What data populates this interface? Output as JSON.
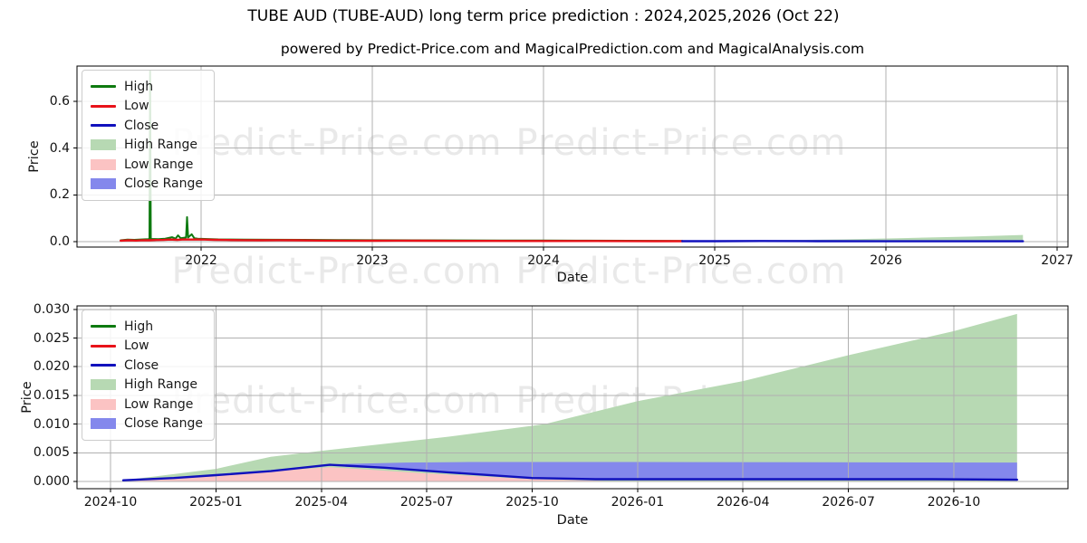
{
  "title": "TUBE AUD (TUBE-AUD) long term price prediction : 2024,2025,2026 (Oct 22)",
  "subtitle": "powered by Predict-Price.com and MagicalPrediction.com and MagicalAnalysis.com",
  "watermark_text": "Predict-Price.com",
  "colors": {
    "high_line": "#0e7a10",
    "low_line": "#e81219",
    "close_line": "#1111bd",
    "high_range_fill": "#b7d9b3",
    "low_range_fill": "#fbc3c3",
    "close_range_fill": "#8488ec",
    "grid": "#b0b0b0",
    "spine": "#000000",
    "watermark": "#e9e9e9"
  },
  "legend": {
    "items": [
      {
        "label": "High",
        "swatch": "line",
        "color": "#0e7a10"
      },
      {
        "label": "Low",
        "swatch": "line",
        "color": "#e81219"
      },
      {
        "label": "Close",
        "swatch": "line",
        "color": "#1111bd"
      },
      {
        "label": "High Range",
        "swatch": "patch",
        "color": "#b7d9b3"
      },
      {
        "label": "Low Range",
        "swatch": "patch",
        "color": "#fbc3c3"
      },
      {
        "label": "Close Range",
        "swatch": "patch",
        "color": "#8488ec"
      }
    ]
  },
  "chart_data": [
    {
      "type": "line",
      "name": "historical-and-forecast-overview",
      "xlabel": "Date",
      "ylabel": "Price",
      "x_unit": "decimal_year",
      "xlim": [
        2021.275,
        2027.063
      ],
      "ylim": [
        -0.023,
        0.751
      ],
      "x_ticks": {
        "values": [
          2022,
          2023,
          2024,
          2025,
          2026,
          2027
        ],
        "labels": [
          "2022",
          "2023",
          "2024",
          "2025",
          "2026",
          "2027"
        ]
      },
      "y_ticks": {
        "values": [
          0.0,
          0.2,
          0.4,
          0.6
        ],
        "labels": [
          "0.0",
          "0.2",
          "0.4",
          "0.6"
        ]
      },
      "grid": true,
      "legend_position": "upper-left",
      "series": [
        {
          "name": "High Range",
          "kind": "area",
          "color": "#b7d9b3",
          "top": [
            [
              2024.81,
              0.002
            ],
            [
              2025.27,
              0.0055
            ],
            [
              2025.75,
              0.01
            ],
            [
              2026.1,
              0.0152
            ],
            [
              2026.5,
              0.022
            ],
            [
              2026.8,
              0.029
            ]
          ],
          "baseline": 0
        },
        {
          "name": "Low Range",
          "kind": "area",
          "color": "#fbc3c3",
          "top": [
            [
              2024.81,
              0.002
            ],
            [
              2025.27,
              0.0025
            ],
            [
              2025.9,
              0.0003
            ],
            [
              2026.8,
              0.0002
            ]
          ],
          "baseline": 0
        },
        {
          "name": "Close Range",
          "kind": "area",
          "color": "#8488ec",
          "top": [
            [
              2025.27,
              0.0035
            ],
            [
              2025.6,
              0.0036
            ],
            [
              2026.8,
              0.0034
            ]
          ],
          "bottom": [
            [
              2026.8,
              0.0003
            ],
            [
              2025.6,
              0.0015
            ],
            [
              2025.27,
              0.0028
            ]
          ]
        },
        {
          "name": "High",
          "kind": "line",
          "color": "#0e7a10",
          "width": 2,
          "points": [
            [
              2021.53,
              0.006
            ],
            [
              2021.57,
              0.009
            ],
            [
              2021.61,
              0.008
            ],
            [
              2021.65,
              0.0095
            ],
            [
              2021.69,
              0.011
            ],
            [
              2021.698,
              0.012
            ],
            [
              2021.702,
              0.73
            ],
            [
              2021.706,
              0.012
            ],
            [
              2021.75,
              0.011
            ],
            [
              2021.79,
              0.013
            ],
            [
              2021.83,
              0.019
            ],
            [
              2021.85,
              0.013
            ],
            [
              2021.865,
              0.027
            ],
            [
              2021.88,
              0.015
            ],
            [
              2021.912,
              0.018
            ],
            [
              2021.918,
              0.105
            ],
            [
              2021.924,
              0.018
            ],
            [
              2021.945,
              0.032
            ],
            [
              2021.96,
              0.015
            ],
            [
              2021.98,
              0.013
            ],
            [
              2022.02,
              0.012
            ],
            [
              2022.1,
              0.01
            ],
            [
              2022.25,
              0.009
            ],
            [
              2022.4,
              0.0085
            ],
            [
              2022.6,
              0.008
            ],
            [
              2022.8,
              0.007
            ],
            [
              2023.0,
              0.0065
            ],
            [
              2023.25,
              0.006
            ],
            [
              2023.5,
              0.0055
            ],
            [
              2023.75,
              0.005
            ],
            [
              2024.0,
              0.005
            ],
            [
              2024.25,
              0.0045
            ],
            [
              2024.5,
              0.004
            ],
            [
              2024.81,
              0.0035
            ]
          ]
        },
        {
          "name": "Low",
          "kind": "line",
          "color": "#e81219",
          "width": 2.4,
          "points": [
            [
              2021.53,
              0.0045
            ],
            [
              2021.58,
              0.006
            ],
            [
              2021.62,
              0.005
            ],
            [
              2021.66,
              0.0065
            ],
            [
              2021.7,
              0.006
            ],
            [
              2021.74,
              0.007
            ],
            [
              2021.78,
              0.0075
            ],
            [
              2021.82,
              0.009
            ],
            [
              2021.86,
              0.008
            ],
            [
              2021.9,
              0.0095
            ],
            [
              2021.94,
              0.009
            ],
            [
              2021.98,
              0.0095
            ],
            [
              2022.02,
              0.009
            ],
            [
              2022.08,
              0.008
            ],
            [
              2022.15,
              0.007
            ],
            [
              2022.25,
              0.0065
            ],
            [
              2022.35,
              0.006
            ],
            [
              2022.45,
              0.0065
            ],
            [
              2022.55,
              0.006
            ],
            [
              2022.7,
              0.005
            ],
            [
              2022.85,
              0.0045
            ],
            [
              2023.0,
              0.004
            ],
            [
              2023.15,
              0.0045
            ],
            [
              2023.3,
              0.004
            ],
            [
              2023.5,
              0.0035
            ],
            [
              2023.7,
              0.0035
            ],
            [
              2023.9,
              0.003
            ],
            [
              2024.1,
              0.003
            ],
            [
              2024.3,
              0.0028
            ],
            [
              2024.5,
              0.0025
            ],
            [
              2024.65,
              0.0022
            ],
            [
              2024.81,
              0.002
            ]
          ]
        },
        {
          "name": "Close",
          "kind": "line",
          "color": "#1111bd",
          "width": 2.4,
          "points": [
            [
              2024.81,
              0.002
            ],
            [
              2025.0,
              0.0022
            ],
            [
              2025.27,
              0.003
            ],
            [
              2025.6,
              0.002
            ],
            [
              2026.0,
              0.0018
            ],
            [
              2026.4,
              0.0018
            ],
            [
              2026.8,
              0.0016
            ]
          ]
        }
      ]
    },
    {
      "type": "line",
      "name": "prediction-detail",
      "xlabel": "Date",
      "ylabel": "Price",
      "x_unit": "decimal_year",
      "xlim": [
        2024.6705,
        2027.0207
      ],
      "ylim": [
        -0.00126,
        0.0306
      ],
      "x_ticks": {
        "values": [
          2024.75,
          2025.0,
          2025.25,
          2025.5,
          2025.75,
          2026.0,
          2026.25,
          2026.5,
          2026.75
        ],
        "labels": [
          "2024-10",
          "2025-01",
          "2025-04",
          "2025-07",
          "2025-10",
          "2026-01",
          "2026-04",
          "2026-07",
          "2026-10"
        ]
      },
      "y_ticks": {
        "values": [
          0.0,
          0.005,
          0.01,
          0.015,
          0.02,
          0.025,
          0.03
        ],
        "labels": [
          "0.000",
          "0.005",
          "0.010",
          "0.015",
          "0.020",
          "0.025",
          "0.030"
        ]
      },
      "grid": true,
      "legend_position": "upper-left",
      "series": [
        {
          "name": "High Range",
          "kind": "area",
          "color": "#b7d9b3",
          "top": [
            [
              2024.78,
              0.0002
            ],
            [
              2025.0,
              0.0022
            ],
            [
              2025.13,
              0.0043
            ],
            [
              2025.27,
              0.0055
            ],
            [
              2025.55,
              0.0078
            ],
            [
              2025.78,
              0.01
            ],
            [
              2026.0,
              0.014
            ],
            [
              2026.25,
              0.0175
            ],
            [
              2026.5,
              0.022
            ],
            [
              2026.75,
              0.0262
            ],
            [
              2026.9,
              0.0292
            ]
          ],
          "baseline": 0
        },
        {
          "name": "Low Range",
          "kind": "area",
          "color": "#fbc3c3",
          "top": [
            [
              2024.8,
              0.0002
            ],
            [
              2025.0,
              0.0012
            ],
            [
              2025.27,
              0.0025
            ],
            [
              2025.5,
              0.0014
            ],
            [
              2025.75,
              0.0004
            ],
            [
              2025.95,
              5e-05
            ]
          ],
          "baseline": 0
        },
        {
          "name": "Close Range",
          "kind": "area",
          "color": "#8488ec",
          "top": [
            [
              2025.27,
              0.003
            ],
            [
              2025.45,
              0.0033
            ],
            [
              2025.6,
              0.0034
            ],
            [
              2026.0,
              0.0034
            ],
            [
              2026.9,
              0.0033
            ]
          ],
          "bottom": [
            [
              2026.9,
              0.0003
            ],
            [
              2026.4,
              0.0004
            ],
            [
              2026.0,
              0.0004
            ],
            [
              2025.75,
              0.0006
            ],
            [
              2025.55,
              0.0016
            ],
            [
              2025.4,
              0.0024
            ],
            [
              2025.27,
              0.0029
            ]
          ]
        },
        {
          "name": "Close",
          "kind": "line",
          "color": "#1111bd",
          "width": 2.4,
          "points": [
            [
              2024.78,
              0.0002
            ],
            [
              2024.9,
              0.0006
            ],
            [
              2025.0,
              0.0011
            ],
            [
              2025.13,
              0.0018
            ],
            [
              2025.27,
              0.0029
            ],
            [
              2025.4,
              0.0024
            ],
            [
              2025.55,
              0.0016
            ],
            [
              2025.75,
              0.0006
            ],
            [
              2025.9,
              0.0004
            ],
            [
              2026.1,
              0.0004
            ],
            [
              2026.4,
              0.0004
            ],
            [
              2026.7,
              0.0004
            ],
            [
              2026.9,
              0.0003
            ]
          ]
        }
      ]
    }
  ]
}
